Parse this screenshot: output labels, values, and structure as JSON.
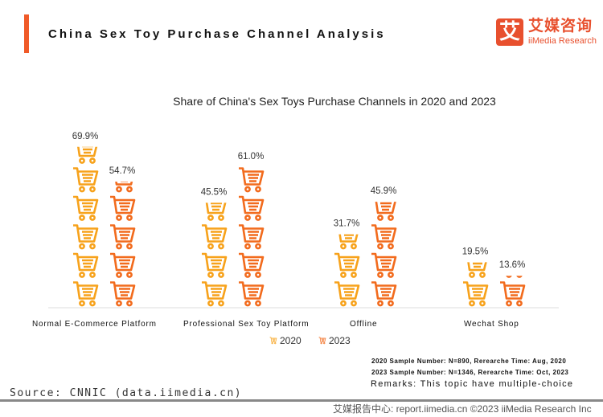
{
  "header": {
    "title": "China Sex Toy Purchase Channel Analysis",
    "logo_char": "艾",
    "logo_cn": "艾媒咨询",
    "logo_en": "iiMedia Research"
  },
  "colors": {
    "accent": "#f05a28",
    "s2020": "#f7a21b",
    "s2023": "#f26b1d"
  },
  "chart_data": {
    "type": "bar",
    "style": "pictorial-cart-icons",
    "title": "Share of China's Sex Toys Purchase Channels in 2020 and 2023",
    "categories": [
      "Normal E-Commerce Platform",
      "Professional Sex Toy Platform",
      "Offline",
      "Wechat Shop"
    ],
    "series": [
      {
        "name": "2020",
        "values": [
          69.9,
          45.5,
          31.7,
          19.5
        ],
        "labels": [
          "69.9%",
          "45.5%",
          "31.7%",
          "19.5%"
        ]
      },
      {
        "name": "2023",
        "values": [
          54.7,
          61.0,
          45.9,
          13.6
        ],
        "labels": [
          "54.7%",
          "61.0%",
          "45.9%",
          "13.6%"
        ]
      }
    ],
    "legend": "bottom-center",
    "grid": false
  },
  "notes": {
    "sample2020": "2020 Sample Number: N=890, Rerearche Time: Aug, 2020",
    "sample2023": "2023 Sample Number: N=1346, Rerearche Time: Oct, 2023",
    "remarks": "Remarks: This topic have multiple-choice"
  },
  "source": "Source: CNNIC (data.iimedia.cn)",
  "footer": "艾媒报告中心: report.iimedia.cn ©2023 iiMedia Research Inc"
}
